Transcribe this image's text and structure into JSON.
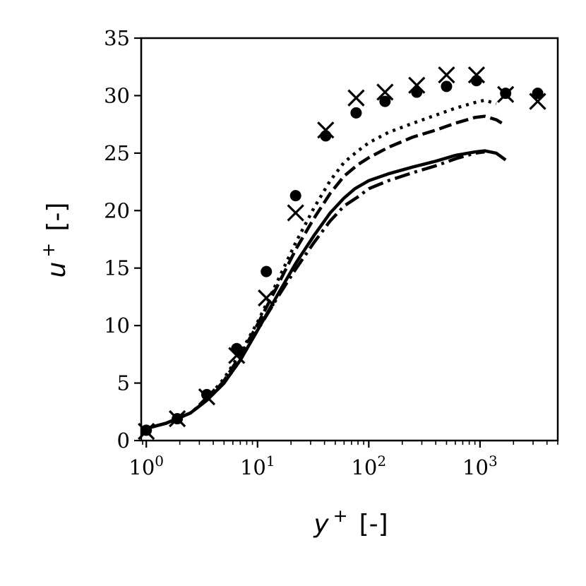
{
  "chart_data": {
    "type": "line",
    "title": "",
    "xlabel": {
      "var": "y",
      "sup": "+",
      "unit": "[-]"
    },
    "ylabel": {
      "var": "u",
      "sup": "+",
      "unit": "[-]"
    },
    "xscale": "log",
    "xlim": [
      0.9,
      5000
    ],
    "ylim": [
      0,
      35
    ],
    "xticks": [
      {
        "base": "10",
        "exp": "0",
        "value": 1
      },
      {
        "base": "10",
        "exp": "1",
        "value": 10
      },
      {
        "base": "10",
        "exp": "2",
        "value": 100
      },
      {
        "base": "10",
        "exp": "3",
        "value": 1000
      }
    ],
    "yticks": [
      "0",
      "5",
      "10",
      "15",
      "20",
      "25",
      "30",
      "35"
    ],
    "grid": false,
    "legend": "none",
    "line_color": "#000000",
    "series": [
      {
        "style": "solid",
        "x": [
          0.95,
          1.5,
          2.5,
          3.5,
          5,
          7,
          10,
          15,
          22,
          32,
          45,
          60,
          75,
          100,
          150,
          250,
          400,
          600,
          900,
          1100,
          1400,
          1700
        ],
        "y": [
          1.0,
          1.5,
          2.4,
          3.5,
          5.0,
          7.0,
          9.6,
          12.6,
          15.4,
          17.8,
          19.8,
          21.1,
          21.9,
          22.6,
          23.2,
          23.8,
          24.3,
          24.8,
          25.1,
          25.2,
          25.0,
          24.4
        ]
      },
      {
        "style": "dashdot",
        "x": [
          0.95,
          1.5,
          2.5,
          3.5,
          5,
          7,
          10,
          15,
          22,
          32,
          45,
          60,
          80,
          100,
          150,
          250,
          400,
          600,
          900,
          1100
        ],
        "y": [
          1.0,
          1.5,
          2.4,
          3.5,
          5.0,
          7.0,
          9.6,
          12.4,
          14.9,
          17.2,
          19.1,
          20.4,
          21.2,
          21.9,
          22.6,
          23.3,
          23.9,
          24.5,
          25.0,
          25.1
        ]
      },
      {
        "style": "dashed",
        "x": [
          0.95,
          1.5,
          2.5,
          3.5,
          5,
          7,
          10,
          15,
          22,
          32,
          45,
          60,
          80,
          100,
          150,
          250,
          400,
          600,
          900,
          1100,
          1400,
          1700
        ],
        "y": [
          1.0,
          1.5,
          2.4,
          3.5,
          5.2,
          7.4,
          10.1,
          13.4,
          16.6,
          19.3,
          21.5,
          23.0,
          24.0,
          24.6,
          25.5,
          26.4,
          27.0,
          27.6,
          28.1,
          28.2,
          27.9,
          27.4
        ]
      },
      {
        "style": "dotted",
        "x": [
          0.95,
          1.5,
          2.5,
          3.5,
          5,
          7,
          10,
          15,
          22,
          32,
          45,
          60,
          80,
          100,
          150,
          250,
          400,
          600,
          900,
          1100,
          1400
        ],
        "y": [
          1.0,
          1.5,
          2.4,
          3.6,
          5.4,
          7.6,
          10.3,
          13.8,
          17.2,
          20.2,
          22.6,
          24.2,
          25.2,
          25.9,
          26.8,
          27.6,
          28.3,
          28.9,
          29.4,
          29.6,
          29.3
        ]
      }
    ],
    "markers": [
      {
        "marker": "circle",
        "x": [
          1.0,
          1.9,
          3.5,
          6.5,
          12,
          22,
          41,
          77,
          140,
          270,
          500,
          930,
          1700,
          3300
        ],
        "y": [
          0.9,
          1.9,
          4.0,
          8.0,
          14.7,
          21.3,
          26.5,
          28.5,
          29.5,
          30.3,
          30.8,
          31.3,
          30.2,
          30.2
        ]
      },
      {
        "marker": "x",
        "x": [
          1.0,
          1.9,
          3.5,
          6.5,
          12,
          22,
          41,
          77,
          140,
          270,
          500,
          930,
          1700,
          3300
        ],
        "y": [
          0.8,
          1.9,
          3.8,
          7.4,
          12.4,
          19.8,
          27.0,
          29.8,
          30.3,
          30.9,
          31.8,
          31.8,
          30.1,
          29.5
        ]
      }
    ]
  }
}
